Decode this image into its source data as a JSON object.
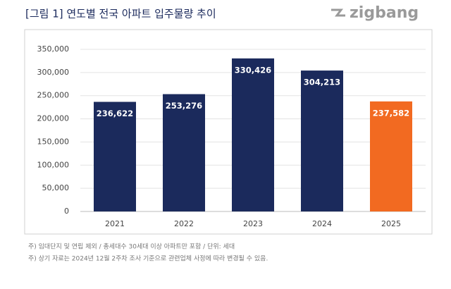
{
  "chart_data": {
    "type": "bar",
    "title": "[그림 1] 연도별 전국 아파트 입주물량 추이",
    "logo": "zigbang",
    "categories": [
      "2021",
      "2022",
      "2023",
      "2024",
      "2025"
    ],
    "values": [
      236622,
      253276,
      330426,
      304213,
      237582
    ],
    "value_labels": [
      "236,622",
      "253,276",
      "330,426",
      "304,213",
      "237,582"
    ],
    "colors": [
      "#1b2a5c",
      "#1b2a5c",
      "#1b2a5c",
      "#1b2a5c",
      "#f26a21"
    ],
    "ylim": [
      0,
      350000
    ],
    "yticks": [
      0,
      {
        "value": 50000,
        "label": "50,000"
      },
      {
        "value": 100000,
        "label": "100,000"
      },
      {
        "value": 150000,
        "label": "150,000"
      },
      {
        "value": 200000,
        "label": "200,000"
      },
      {
        "value": 250000,
        "label": "250,000"
      },
      {
        "value": 300000,
        "label": "300,000"
      },
      {
        "value": 350000,
        "label": "350,000"
      }
    ],
    "grid": true,
    "notes": [
      "주) 임대단지 및 연립 제외 / 총세대수 30세대 이상 아파트만 포함 / 단위: 세대",
      "주) 상기 자료는 2024년 12월 2주차 조사 기준으로 관련업체 사정에 따라 변경될 수 있음."
    ]
  }
}
